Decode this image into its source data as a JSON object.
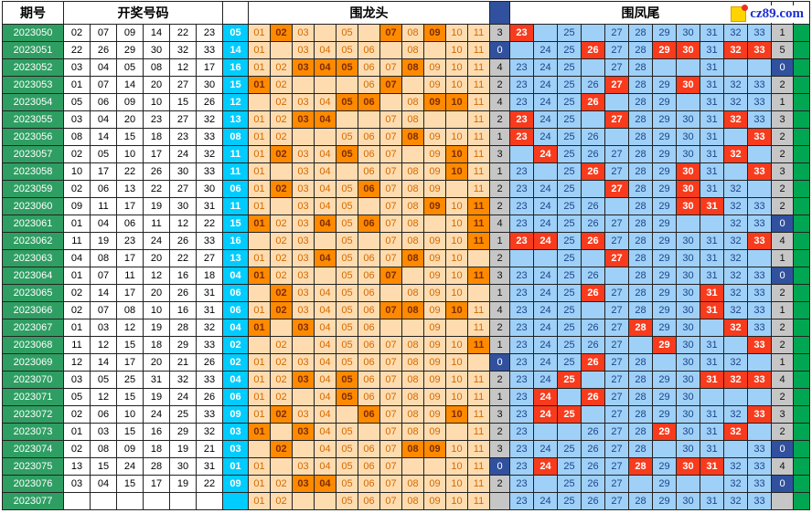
{
  "header": {
    "period_label": "期号",
    "numbers_label": "开奖号码",
    "head_label": "围龙头",
    "tail_label": "围凤尾",
    "logo_text": "cz89.com"
  },
  "colors": {
    "period_bg": "#2f9e63",
    "special_bg": "#00ccff",
    "head_light": "#ffdcb0",
    "head_hit": "#ff8a00",
    "tail_light": "#9fd0f8",
    "tail_hit": "#f83b1d",
    "count_bg": "#c6c6c6",
    "zero_bg": "#31519e",
    "marker_green": "#00a651"
  },
  "chart_data": {
    "type": "table",
    "head_columns": [
      "01",
      "02",
      "03",
      "04",
      "05",
      "06",
      "07",
      "08",
      "09",
      "10",
      "11"
    ],
    "tail_columns": [
      "23",
      "24",
      "25",
      "26",
      "27",
      "28",
      "29",
      "30",
      "31",
      "32",
      "33"
    ],
    "rows": [
      {
        "period": "2023050",
        "nums": [
          "02",
          "07",
          "09",
          "14",
          "22",
          "23"
        ],
        "special": "05",
        "head_hits": [
          2,
          7,
          9
        ],
        "head_blanks": [
          4,
          6
        ],
        "head_count": "3",
        "tail_hits": [
          23
        ],
        "tail_blanks": [
          24,
          26
        ],
        "tail_count": "1"
      },
      {
        "period": "2023051",
        "nums": [
          "22",
          "26",
          "29",
          "30",
          "32",
          "33"
        ],
        "special": "14",
        "head_hits": [],
        "head_blanks": [
          2,
          7,
          9
        ],
        "head_count": "0",
        "tail_hits": [
          26,
          29,
          30,
          32,
          33
        ],
        "tail_blanks": [
          23
        ],
        "tail_count": "5"
      },
      {
        "period": "2023052",
        "nums": [
          "03",
          "04",
          "05",
          "08",
          "12",
          "17"
        ],
        "special": "16",
        "head_hits": [
          3,
          4,
          5,
          8
        ],
        "head_blanks": [],
        "head_count": "4",
        "tail_hits": [],
        "tail_blanks": [
          26,
          29,
          30,
          32,
          33
        ],
        "tail_count": "0"
      },
      {
        "period": "2023053",
        "nums": [
          "01",
          "07",
          "14",
          "20",
          "27",
          "30"
        ],
        "special": "15",
        "head_hits": [
          1,
          7
        ],
        "head_blanks": [
          3,
          4,
          5,
          8
        ],
        "head_count": "2",
        "tail_hits": [
          27,
          30
        ],
        "tail_blanks": [],
        "tail_count": "2"
      },
      {
        "period": "2023054",
        "nums": [
          "05",
          "06",
          "09",
          "10",
          "15",
          "26"
        ],
        "special": "12",
        "head_hits": [
          5,
          6,
          9,
          10
        ],
        "head_blanks": [
          1,
          7
        ],
        "head_count": "4",
        "tail_hits": [
          26
        ],
        "tail_blanks": [
          27,
          30
        ],
        "tail_count": "1"
      },
      {
        "period": "2023055",
        "nums": [
          "03",
          "04",
          "20",
          "23",
          "27",
          "32"
        ],
        "special": "13",
        "head_hits": [
          3,
          4
        ],
        "head_blanks": [
          5,
          6,
          9,
          10
        ],
        "head_count": "2",
        "tail_hits": [
          23,
          27,
          32
        ],
        "tail_blanks": [
          26
        ],
        "tail_count": "3"
      },
      {
        "period": "2023056",
        "nums": [
          "08",
          "14",
          "15",
          "18",
          "23",
          "33"
        ],
        "special": "08",
        "head_hits": [
          8
        ],
        "head_blanks": [
          3,
          4
        ],
        "head_count": "1",
        "tail_hits": [
          23,
          33
        ],
        "tail_blanks": [
          27,
          32
        ],
        "tail_count": "2"
      },
      {
        "period": "2023057",
        "nums": [
          "02",
          "05",
          "10",
          "17",
          "24",
          "32"
        ],
        "special": "11",
        "head_hits": [
          2,
          5,
          10
        ],
        "head_blanks": [
          8
        ],
        "head_count": "3",
        "tail_hits": [
          24,
          32
        ],
        "tail_blanks": [
          23,
          33
        ],
        "tail_count": "2"
      },
      {
        "period": "2023058",
        "nums": [
          "10",
          "17",
          "22",
          "26",
          "30",
          "33"
        ],
        "special": "11",
        "head_hits": [
          10
        ],
        "head_blanks": [
          2,
          5
        ],
        "head_count": "1",
        "tail_hits": [
          26,
          30,
          33
        ],
        "tail_blanks": [
          24,
          32
        ],
        "tail_count": "3"
      },
      {
        "period": "2023059",
        "nums": [
          "02",
          "06",
          "13",
          "22",
          "27",
          "30"
        ],
        "special": "06",
        "head_hits": [
          2,
          6
        ],
        "head_blanks": [
          10
        ],
        "head_count": "2",
        "tail_hits": [
          27,
          30
        ],
        "tail_blanks": [
          26,
          33
        ],
        "tail_count": "2"
      },
      {
        "period": "2023060",
        "nums": [
          "09",
          "11",
          "17",
          "19",
          "30",
          "31"
        ],
        "special": "11",
        "head_hits": [
          9,
          11
        ],
        "head_blanks": [
          2,
          6
        ],
        "head_count": "2",
        "tail_hits": [
          30,
          31
        ],
        "tail_blanks": [
          27
        ],
        "tail_count": "2"
      },
      {
        "period": "2023061",
        "nums": [
          "01",
          "04",
          "06",
          "11",
          "12",
          "22"
        ],
        "special": "15",
        "head_hits": [
          1,
          4,
          6,
          11
        ],
        "head_blanks": [
          9
        ],
        "head_count": "4",
        "tail_hits": [],
        "tail_blanks": [
          30,
          31
        ],
        "tail_count": "0"
      },
      {
        "period": "2023062",
        "nums": [
          "11",
          "19",
          "23",
          "24",
          "26",
          "33"
        ],
        "special": "16",
        "head_hits": [
          11
        ],
        "head_blanks": [
          1,
          4,
          6
        ],
        "head_count": "1",
        "tail_hits": [
          23,
          24,
          26,
          33
        ],
        "tail_blanks": [],
        "tail_count": "4"
      },
      {
        "period": "2023063",
        "nums": [
          "04",
          "08",
          "17",
          "20",
          "22",
          "27"
        ],
        "special": "13",
        "head_hits": [
          4,
          8
        ],
        "head_blanks": [
          11
        ],
        "head_count": "2",
        "tail_hits": [
          27
        ],
        "tail_blanks": [
          23,
          24,
          26,
          33
        ],
        "tail_count": "1"
      },
      {
        "period": "2023064",
        "nums": [
          "01",
          "07",
          "11",
          "12",
          "16",
          "18"
        ],
        "special": "04",
        "head_hits": [
          1,
          7,
          11
        ],
        "head_blanks": [
          4,
          8
        ],
        "head_count": "3",
        "tail_hits": [],
        "tail_blanks": [
          27
        ],
        "tail_count": "0"
      },
      {
        "period": "2023065",
        "nums": [
          "02",
          "14",
          "17",
          "20",
          "26",
          "31"
        ],
        "special": "06",
        "head_hits": [
          2
        ],
        "head_blanks": [
          1,
          7,
          11
        ],
        "head_count": "1",
        "tail_hits": [
          26,
          31
        ],
        "tail_blanks": [],
        "tail_count": "2"
      },
      {
        "period": "2023066",
        "nums": [
          "02",
          "07",
          "08",
          "10",
          "16",
          "31"
        ],
        "special": "06",
        "head_hits": [
          2,
          7,
          8,
          10
        ],
        "head_blanks": [],
        "head_count": "4",
        "tail_hits": [
          31
        ],
        "tail_blanks": [
          26
        ],
        "tail_count": "1"
      },
      {
        "period": "2023067",
        "nums": [
          "01",
          "03",
          "12",
          "19",
          "28",
          "32"
        ],
        "special": "04",
        "head_hits": [
          1,
          3
        ],
        "head_blanks": [
          2,
          7,
          8,
          10
        ],
        "head_count": "2",
        "tail_hits": [
          28,
          32
        ],
        "tail_blanks": [
          31
        ],
        "tail_count": "2"
      },
      {
        "period": "2023068",
        "nums": [
          "11",
          "12",
          "15",
          "18",
          "29",
          "33"
        ],
        "special": "02",
        "head_hits": [
          11
        ],
        "head_blanks": [
          1,
          3
        ],
        "head_count": "1",
        "tail_hits": [
          29,
          33
        ],
        "tail_blanks": [
          28,
          32
        ],
        "tail_count": "2"
      },
      {
        "period": "2023069",
        "nums": [
          "12",
          "14",
          "17",
          "20",
          "21",
          "26"
        ],
        "special": "02",
        "head_hits": [],
        "head_blanks": [
          11
        ],
        "head_count": "0",
        "tail_hits": [
          26
        ],
        "tail_blanks": [
          29,
          33
        ],
        "tail_count": "1"
      },
      {
        "period": "2023070",
        "nums": [
          "03",
          "05",
          "25",
          "31",
          "32",
          "33"
        ],
        "special": "04",
        "head_hits": [
          3,
          5
        ],
        "head_blanks": [],
        "head_count": "2",
        "tail_hits": [
          25,
          31,
          32,
          33
        ],
        "tail_blanks": [
          26
        ],
        "tail_count": "4"
      },
      {
        "period": "2023071",
        "nums": [
          "05",
          "12",
          "15",
          "19",
          "24",
          "26"
        ],
        "special": "06",
        "head_hits": [
          5
        ],
        "head_blanks": [
          3
        ],
        "head_count": "1",
        "tail_hits": [
          24,
          26
        ],
        "tail_blanks": [
          25,
          31,
          32,
          33
        ],
        "tail_count": "2"
      },
      {
        "period": "2023072",
        "nums": [
          "02",
          "06",
          "10",
          "24",
          "25",
          "33"
        ],
        "special": "09",
        "head_hits": [
          2,
          6,
          10
        ],
        "head_blanks": [
          5
        ],
        "head_count": "3",
        "tail_hits": [
          24,
          25,
          33
        ],
        "tail_blanks": [
          26
        ],
        "tail_count": "3"
      },
      {
        "period": "2023073",
        "nums": [
          "01",
          "03",
          "15",
          "16",
          "29",
          "32"
        ],
        "special": "03",
        "head_hits": [
          1,
          3
        ],
        "head_blanks": [
          2,
          6,
          10
        ],
        "head_count": "2",
        "tail_hits": [
          29,
          32
        ],
        "tail_blanks": [
          24,
          25,
          33
        ],
        "tail_count": "2"
      },
      {
        "period": "2023074",
        "nums": [
          "02",
          "08",
          "09",
          "18",
          "19",
          "21"
        ],
        "special": "03",
        "head_hits": [
          2,
          8,
          9
        ],
        "head_blanks": [
          1,
          3
        ],
        "head_count": "3",
        "tail_hits": [],
        "tail_blanks": [
          29,
          32
        ],
        "tail_count": "0"
      },
      {
        "period": "2023075",
        "nums": [
          "13",
          "15",
          "24",
          "28",
          "30",
          "31"
        ],
        "special": "01",
        "head_hits": [],
        "head_blanks": [
          2,
          8,
          9
        ],
        "head_count": "0",
        "tail_hits": [
          24,
          28,
          30,
          31
        ],
        "tail_blanks": [],
        "tail_count": "4"
      },
      {
        "period": "2023076",
        "nums": [
          "03",
          "04",
          "15",
          "17",
          "19",
          "22"
        ],
        "special": "09",
        "head_hits": [
          3,
          4
        ],
        "head_blanks": [],
        "head_count": "2",
        "tail_hits": [],
        "tail_blanks": [
          24,
          28,
          30,
          31
        ],
        "tail_count": "0"
      },
      {
        "period": "2023077",
        "nums": [
          "",
          "",
          "",
          "",
          "",
          ""
        ],
        "special": "",
        "head_hits": [],
        "head_blanks": [
          3,
          4
        ],
        "head_count": "",
        "tail_hits": [],
        "tail_blanks": [],
        "tail_count": ""
      }
    ]
  }
}
